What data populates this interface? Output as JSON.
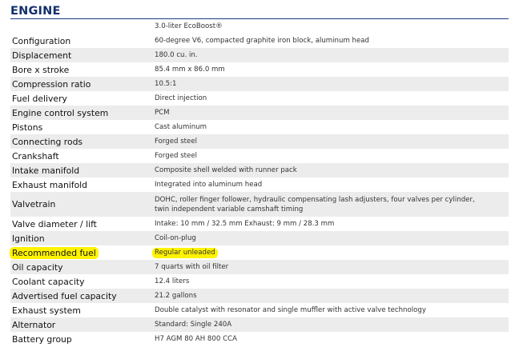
{
  "section_title": "ENGINE",
  "colors": {
    "heading": "#13306b",
    "rule": "#1b3d7d",
    "shaded_row": "#ececec",
    "highlight": "#fff300"
  },
  "rows": [
    {
      "label": "",
      "value": "3.0-liter EcoBoost®"
    },
    {
      "label": "Configuration",
      "value": "60-degree V6, compacted graphite iron block, aluminum head"
    },
    {
      "label": "Displacement",
      "value": "180.0 cu. in."
    },
    {
      "label": "Bore x stroke",
      "value": "85.4 mm x 86.0 mm"
    },
    {
      "label": "Compression ratio",
      "value": "10.5:1"
    },
    {
      "label": "Fuel delivery",
      "value": "Direct injection"
    },
    {
      "label": "Engine control system",
      "value": "PCM"
    },
    {
      "label": "Pistons",
      "value": "Cast aluminum"
    },
    {
      "label": "Connecting rods",
      "value": "Forged steel"
    },
    {
      "label": "Crankshaft",
      "value": "Forged steel"
    },
    {
      "label": "Intake manifold",
      "value": "Composite shell welded with runner pack"
    },
    {
      "label": "Exhaust manifold",
      "value": "Integrated into aluminum head"
    },
    {
      "label": "Valvetrain",
      "value": "DOHC, roller finger follower, hydraulic compensating lash adjusters, four valves per cylinder,\ntwin independent variable camshaft timing"
    },
    {
      "label": "Valve diameter / lift",
      "value": "Intake: 10 mm / 32.5 mm Exhaust: 9 mm / 28.3 mm"
    },
    {
      "label": "Ignition",
      "value": "Coil-on-plug"
    },
    {
      "label": "Recommended fuel",
      "value": "Regular unleaded"
    },
    {
      "label": "Oil capacity",
      "value": "7 quarts with oil filter"
    },
    {
      "label": "Coolant capacity",
      "value": "12.4 liters"
    },
    {
      "label": "Advertised fuel capacity",
      "value": "21.2 gallons"
    },
    {
      "label": "Exhaust system",
      "value": "Double catalyst with resonator and single muffler with active valve technology"
    },
    {
      "label": "Alternator",
      "value": "Standard: Single 240A"
    },
    {
      "label": "Battery group",
      "value": "H7 AGM 80 AH 800 CCA"
    }
  ]
}
